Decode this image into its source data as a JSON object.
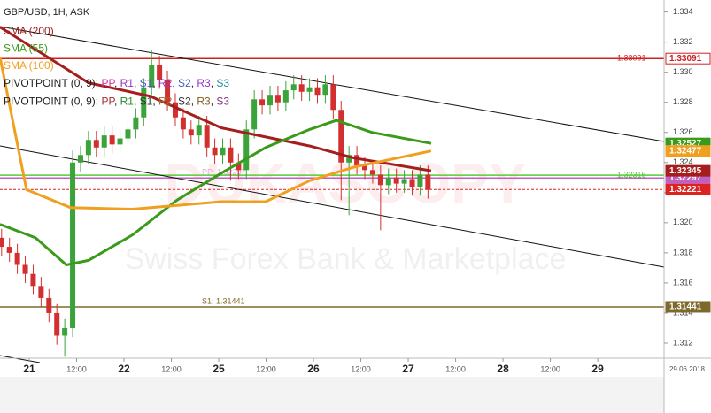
{
  "chart_data": {
    "type": "candlestick",
    "title": "GBP/USD, 1H, ASK",
    "up_color": "#3aa33a",
    "down_color": "#d23030",
    "x": [
      -7,
      -5,
      -3,
      -1,
      1,
      3,
      5,
      7,
      9,
      11,
      13,
      15,
      17,
      19,
      21,
      23,
      25,
      27,
      29,
      31,
      33,
      35,
      37,
      39,
      41,
      43,
      45,
      47,
      49,
      51,
      53,
      55,
      57,
      59,
      61,
      63,
      65,
      67,
      69,
      71,
      73,
      75,
      77,
      79,
      81,
      83,
      85,
      87,
      89,
      91,
      93,
      95,
      97,
      99,
      101
    ],
    "open": [
      1.319,
      1.3184,
      1.318,
      1.3172,
      1.3166,
      1.3158,
      1.315,
      1.314,
      1.3125,
      1.313,
      1.324,
      1.3245,
      1.3255,
      1.325,
      1.3258,
      1.3252,
      1.3256,
      1.3262,
      1.327,
      1.329,
      1.3305,
      1.3295,
      1.328,
      1.327,
      1.3262,
      1.3258,
      1.3265,
      1.325,
      1.3245,
      1.325,
      1.324,
      1.3235,
      1.3262,
      1.3282,
      1.3278,
      1.3285,
      1.328,
      1.3288,
      1.3292,
      1.3287,
      1.329,
      1.3285,
      1.3292,
      1.3275,
      1.324,
      1.3245,
      1.3238,
      1.3235,
      1.3232,
      1.3225,
      1.323,
      1.3226,
      1.3229,
      1.3224,
      1.3232
    ],
    "high": [
      1.3196,
      1.319,
      1.3186,
      1.3178,
      1.3172,
      1.3164,
      1.3156,
      1.3146,
      1.3136,
      1.3248,
      1.3251,
      1.3261,
      1.3261,
      1.3264,
      1.3264,
      1.3262,
      1.3268,
      1.3276,
      1.3296,
      1.3315,
      1.3311,
      1.3301,
      1.3286,
      1.3276,
      1.3268,
      1.3271,
      1.3271,
      1.3256,
      1.3256,
      1.3256,
      1.3246,
      1.3268,
      1.3288,
      1.3288,
      1.3291,
      1.3291,
      1.3294,
      1.3298,
      1.3298,
      1.3296,
      1.3296,
      1.3298,
      1.3298,
      1.3281,
      1.3251,
      1.3251,
      1.3244,
      1.3241,
      1.3238,
      1.3236,
      1.3236,
      1.3235,
      1.3235,
      1.3238,
      1.3238
    ],
    "low": [
      1.3178,
      1.3174,
      1.3166,
      1.316,
      1.3152,
      1.3144,
      1.3134,
      1.3119,
      1.3111,
      1.3124,
      1.3234,
      1.3239,
      1.3244,
      1.3244,
      1.3246,
      1.3246,
      1.325,
      1.3256,
      1.3264,
      1.3284,
      1.3289,
      1.3274,
      1.3264,
      1.3256,
      1.3252,
      1.3252,
      1.3244,
      1.3239,
      1.3239,
      1.3228,
      1.3229,
      1.3229,
      1.3256,
      1.3272,
      1.3272,
      1.3274,
      1.3274,
      1.3282,
      1.3281,
      1.3281,
      1.3279,
      1.3279,
      1.3269,
      1.3215,
      1.3205,
      1.3232,
      1.3229,
      1.3226,
      1.3195,
      1.3219,
      1.322,
      1.322,
      1.3218,
      1.3218,
      1.3216
    ],
    "close": [
      1.3184,
      1.318,
      1.3172,
      1.3166,
      1.3158,
      1.315,
      1.314,
      1.3125,
      1.313,
      1.324,
      1.3245,
      1.3255,
      1.325,
      1.3258,
      1.3252,
      1.3256,
      1.3262,
      1.327,
      1.329,
      1.3305,
      1.3295,
      1.328,
      1.327,
      1.3262,
      1.3258,
      1.3265,
      1.325,
      1.3245,
      1.325,
      1.324,
      1.3235,
      1.3262,
      1.3282,
      1.3278,
      1.3285,
      1.328,
      1.3288,
      1.3292,
      1.3287,
      1.329,
      1.3285,
      1.3292,
      1.3275,
      1.324,
      1.3245,
      1.3238,
      1.3235,
      1.3232,
      1.3225,
      1.323,
      1.3226,
      1.3229,
      1.3224,
      1.3232,
      1.32221
    ],
    "series": [
      {
        "name": "SMA (200)",
        "color": "#a51d1d",
        "x": [
          -7.4,
          15,
          30.7,
          48.7,
          59.9,
          71.1,
          82.3,
          101.8
        ],
        "values": [
          1.333,
          1.3293,
          1.3284,
          1.3263,
          1.3257,
          1.3251,
          1.3243,
          1.32345
        ]
      },
      {
        "name": "SMA (55)",
        "color": "#3a9a1a",
        "x": [
          -7.4,
          1.6,
          9.4,
          15,
          26.2,
          37.4,
          48.7,
          59.9,
          71.1,
          77.8,
          86.8,
          101.8
        ],
        "values": [
          1.3199,
          1.319,
          1.3172,
          1.3175,
          1.3192,
          1.3215,
          1.3233,
          1.325,
          1.3262,
          1.3268,
          1.326,
          1.32527
        ]
      },
      {
        "name": "SMA (100)",
        "color": "#f0a020",
        "x": [
          -7.4,
          -0.7,
          10.5,
          26.2,
          48.7,
          59.9,
          71.1,
          82.3,
          101.8
        ],
        "values": [
          1.331,
          1.3222,
          1.321,
          1.3209,
          1.3214,
          1.3214,
          1.3228,
          1.3237,
          1.32477
        ]
      }
    ],
    "pivot_legends": [
      {
        "label": "PIVOTPOINT (0, 9):",
        "items": [
          {
            "text": "PP",
            "color": "#d0309f"
          },
          {
            "text": "R1",
            "color": "#9932cc"
          },
          {
            "text": "S1",
            "color": "#5050d0"
          },
          {
            "text": "R2",
            "color": "#9932cc"
          },
          {
            "text": "S2",
            "color": "#4060c0"
          },
          {
            "text": "R3",
            "color": "#9932cc"
          },
          {
            "text": "S3",
            "color": "#1a8fa0"
          }
        ]
      },
      {
        "label": "PIVOTPOINT (0, 9):",
        "items": [
          {
            "text": "PP",
            "color": "#a03030"
          },
          {
            "text": "R1",
            "color": "#2a8a2a"
          },
          {
            "text": "S1",
            "color": "#333333"
          },
          {
            "text": "R2",
            "color": "#a07030"
          },
          {
            "text": "S2",
            "color": "#333333"
          },
          {
            "text": "R3",
            "color": "#806020"
          },
          {
            "text": "S3",
            "color": "#803080"
          }
        ]
      }
    ],
    "separator": ", ",
    "levels": [
      {
        "value": 1.33091,
        "color": "#cc2222",
        "tag": "outline"
      },
      {
        "value": 1.32316,
        "color": "#55cc33",
        "tag": "outline"
      },
      {
        "value": 1.32297,
        "label": "PP: 1.32297",
        "color": "#c060c0",
        "tag": "filled"
      },
      {
        "value": 1.31441,
        "label": "S1: 1.31441",
        "color": "#7d6a2a",
        "tag": "filled"
      },
      {
        "value": 1.32221,
        "color": "#dd2222",
        "tag": "filled",
        "dashed": true
      }
    ],
    "watermark": {
      "brand": "DUKASCOPY",
      "slogan": "Swiss Forex Bank & Marketplace"
    },
    "xlim": [
      -7.4,
      160.8
    ],
    "xticks": [
      {
        "value": 0,
        "label": "21"
      },
      {
        "value": 12,
        "label": "12:00"
      },
      {
        "value": 24,
        "label": "22"
      },
      {
        "value": 36,
        "label": "12:00"
      },
      {
        "value": 48,
        "label": "25"
      },
      {
        "value": 60,
        "label": "12:00"
      },
      {
        "value": 72,
        "label": "26"
      },
      {
        "value": 84,
        "label": "12:00"
      },
      {
        "value": 96,
        "label": "27"
      },
      {
        "value": 108,
        "label": "12:00"
      },
      {
        "value": 120,
        "label": "28"
      },
      {
        "value": 132,
        "label": "12:00"
      },
      {
        "value": 144,
        "label": "29"
      }
    ],
    "date_label": "29.06.2018",
    "ylim": [
      1.311,
      1.3348
    ],
    "yticks": [
      1.312,
      1.314,
      1.316,
      1.318,
      {
        "value": 1.32,
        "label": "1.320"
      },
      1.322,
      1.324,
      1.326,
      1.328,
      {
        "value": 1.33,
        "label": "1.330"
      },
      1.332,
      1.334
    ]
  }
}
